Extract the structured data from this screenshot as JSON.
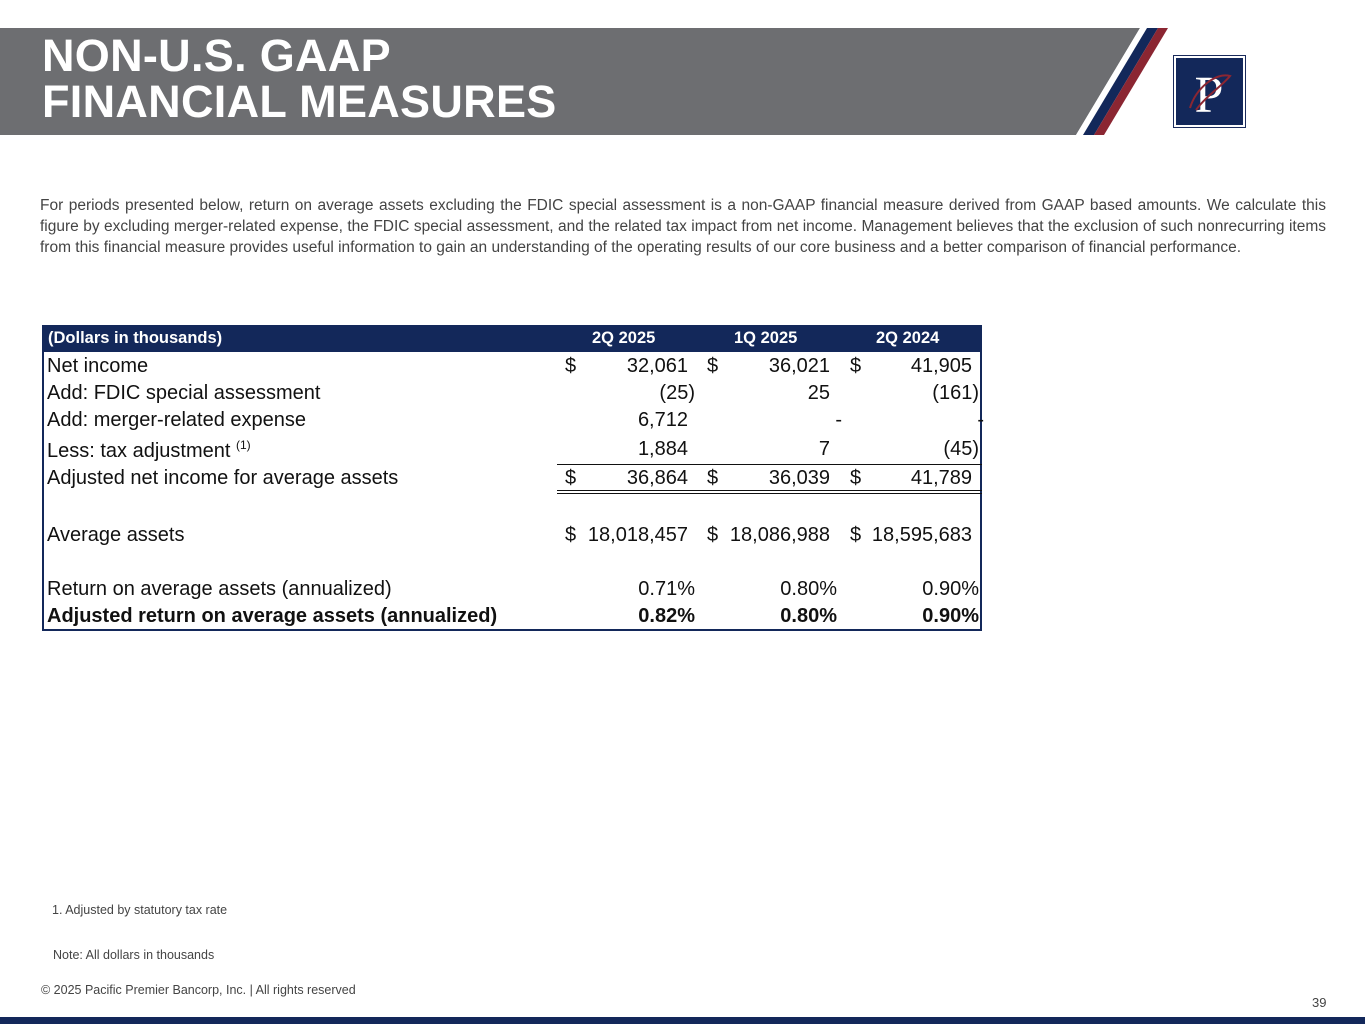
{
  "header": {
    "title_line1": "NON-U.S. GAAP",
    "title_line2": "FINANCIAL MEASURES",
    "logo_text": "P",
    "colors": {
      "banner": "#6d6e71",
      "navy": "#13285a",
      "red": "#8b2632"
    }
  },
  "intro": "For periods presented below, return on average assets excluding the FDIC special assessment is a non-GAAP financial measure derived from GAAP based amounts. We calculate this figure by excluding merger-related expense, the FDIC special assessment, and the related tax impact from net income. Management believes that the exclusion of such nonrecurring items from this financial measure provides useful information to gain an understanding of the operating results of our core business and a better comparison of financial performance.",
  "table": {
    "headers": [
      "(Dollars in thousands)",
      "2Q 2025",
      "1Q 2025",
      "2Q 2024"
    ],
    "rows": [
      {
        "label": "Net income",
        "sup": "",
        "cells": [
          {
            "cur": "$",
            "v": "32,061"
          },
          {
            "cur": "$",
            "v": "36,021"
          },
          {
            "cur": "$",
            "v": "41,905"
          }
        ]
      },
      {
        "label": "Add: FDIC special assessment",
        "sup": "",
        "cells": [
          {
            "cur": "",
            "v": "(25)"
          },
          {
            "cur": "",
            "v": "25"
          },
          {
            "cur": "",
            "v": "(161)"
          }
        ]
      },
      {
        "label": "Add: merger-related expense",
        "sup": "",
        "cells": [
          {
            "cur": "",
            "v": "6,712"
          },
          {
            "cur": "",
            "v": "-"
          },
          {
            "cur": "",
            "v": "-"
          }
        ]
      },
      {
        "label": "Less: tax adjustment",
        "sup": "(1)",
        "cells": [
          {
            "cur": "",
            "v": "1,884"
          },
          {
            "cur": "",
            "v": "7"
          },
          {
            "cur": "",
            "v": "(45)"
          }
        ]
      },
      {
        "label": "Adjusted net income for average assets",
        "sup": "",
        "cells": [
          {
            "cur": "$",
            "v": "36,864"
          },
          {
            "cur": "$",
            "v": "36,039"
          },
          {
            "cur": "$",
            "v": "41,789"
          }
        ]
      },
      {
        "label": "Average assets",
        "sup": "",
        "cells": [
          {
            "cur": "$",
            "v": "18,018,457"
          },
          {
            "cur": "$",
            "v": "18,086,988"
          },
          {
            "cur": "$",
            "v": "18,595,683"
          }
        ]
      },
      {
        "label": "Return on average assets (annualized)",
        "sup": "",
        "cells": [
          {
            "cur": "",
            "v": "0.71%"
          },
          {
            "cur": "",
            "v": "0.80%"
          },
          {
            "cur": "",
            "v": "0.90%"
          }
        ]
      },
      {
        "label": "Adjusted return on average assets (annualized)",
        "sup": "",
        "cells": [
          {
            "cur": "",
            "v": "0.82%"
          },
          {
            "cur": "",
            "v": "0.80%"
          },
          {
            "cur": "",
            "v": "0.90%"
          }
        ]
      }
    ]
  },
  "footnote": "1. Adjusted by statutory tax rate",
  "note": "Note: All dollars in thousands",
  "copyright": "© 2025 Pacific Premier Bancorp, Inc. | All rights reserved",
  "page_number": "39"
}
